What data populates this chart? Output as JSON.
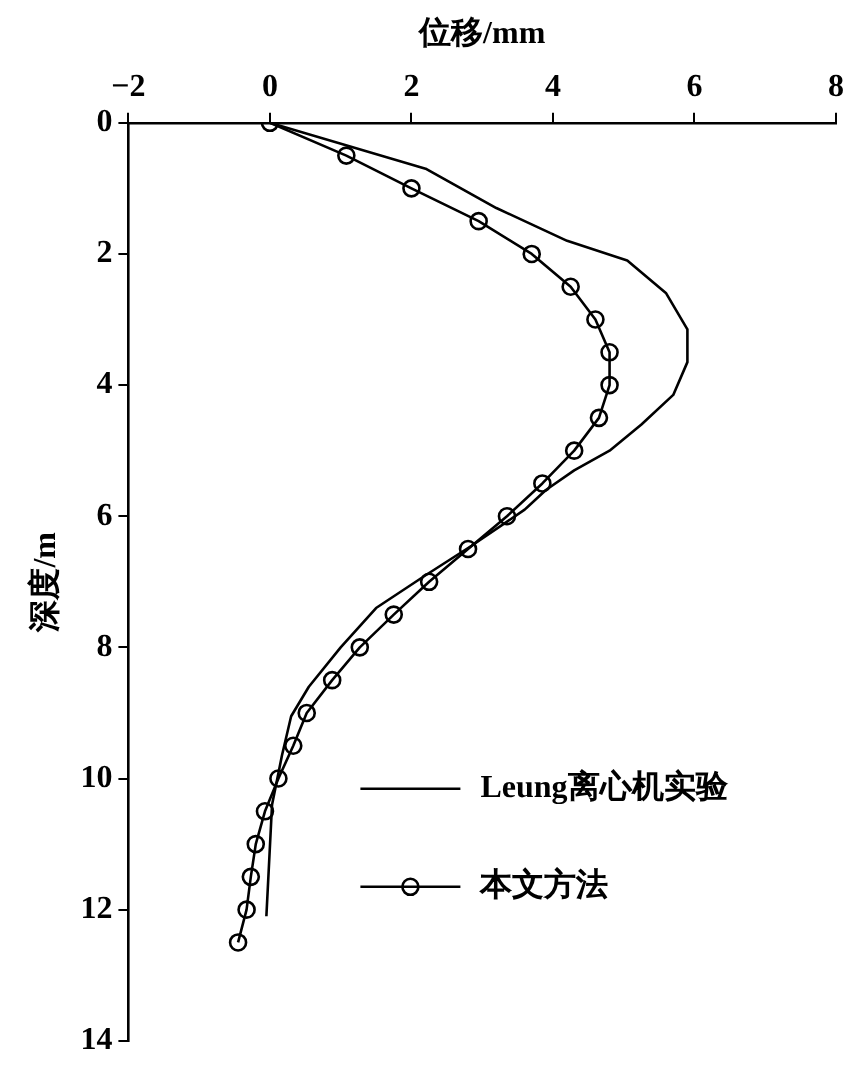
{
  "chart_data": {
    "type": "line",
    "xlabel": "位移/mm",
    "ylabel": "深度/m",
    "xlim": [
      -2,
      8
    ],
    "xticks": [
      {
        "value": -2,
        "label": "−2"
      },
      0,
      2,
      4,
      6,
      8
    ],
    "ylim": [
      14,
      0
    ],
    "yticks": [
      0,
      2,
      4,
      6,
      8,
      10,
      12,
      14
    ],
    "grid": false,
    "legend": "right",
    "series": [
      {
        "name": "Leung离心机实验",
        "color": "#000000",
        "marker": "none",
        "x": [
          0,
          2.2,
          3.2,
          4.2,
          5.05,
          5.6,
          5.9,
          5.9,
          5.7,
          5.25,
          4.8,
          4.3,
          3.9,
          3.6,
          2.85,
          2.2,
          1.5,
          1.0,
          0.55,
          0.3,
          0.17,
          0.03,
          -0.05
        ],
        "values": [
          0,
          0.7,
          1.3,
          1.8,
          2.1,
          2.6,
          3.15,
          3.65,
          4.15,
          4.6,
          5.0,
          5.3,
          5.6,
          5.9,
          6.45,
          6.9,
          7.4,
          8.0,
          8.6,
          9.05,
          9.65,
          10.4,
          12.1
        ]
      },
      {
        "name": "本文方法",
        "color": "#000000",
        "marker": "circle",
        "x": [
          0,
          1.08,
          2.0,
          2.95,
          3.7,
          4.25,
          4.6,
          4.8,
          4.8,
          4.65,
          4.3,
          3.85,
          3.35,
          2.8,
          2.25,
          1.75,
          1.27,
          0.88,
          0.52,
          0.33,
          0.12,
          -0.07,
          -0.2,
          -0.27,
          -0.33,
          -0.45
        ],
        "values": [
          0,
          0.5,
          1.0,
          1.5,
          2.0,
          2.5,
          3.0,
          3.5,
          4.0,
          4.5,
          5.0,
          5.5,
          6.0,
          6.5,
          7.0,
          7.5,
          8.0,
          8.5,
          9.0,
          9.5,
          10.0,
          10.5,
          11.0,
          11.5,
          12.0,
          12.5
        ]
      }
    ]
  }
}
